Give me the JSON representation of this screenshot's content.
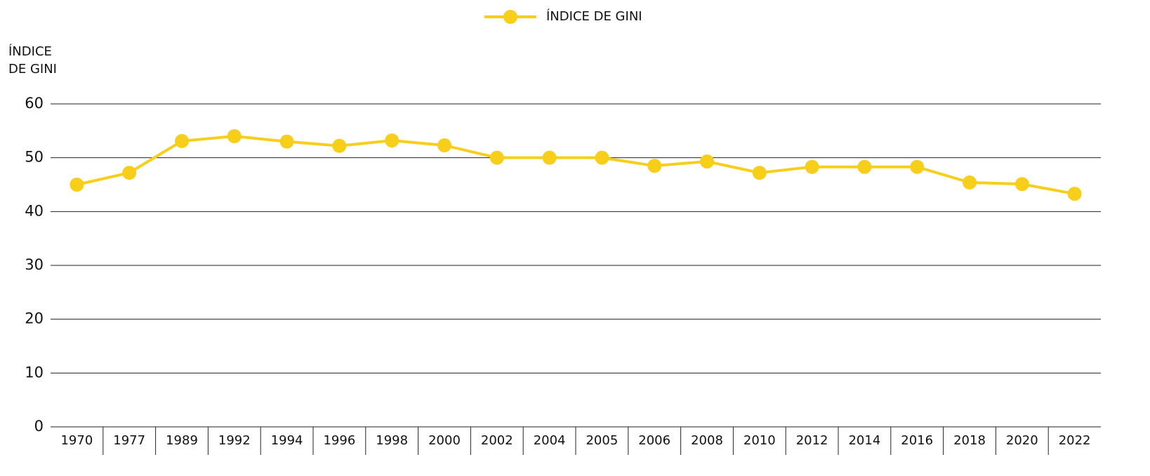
{
  "chart_data": {
    "type": "line",
    "legend": "top",
    "ylabel": [
      "ÍNDICE",
      "DE GINI"
    ],
    "categories": [
      "1970",
      "1977",
      "1989",
      "1992",
      "1994",
      "1996",
      "1998",
      "2000",
      "2002",
      "2004",
      "2005",
      "2006",
      "2008",
      "2010",
      "2012",
      "2014",
      "2016",
      "2018",
      "2020",
      "2022"
    ],
    "series": [
      {
        "name": "ÍNDICE DE GINI",
        "color": "#f7cf1a",
        "values": [
          45.0,
          47.2,
          53.1,
          54.0,
          53.0,
          52.2,
          53.2,
          52.3,
          50.0,
          50.0,
          50.0,
          48.5,
          49.3,
          47.2,
          48.3,
          48.3,
          48.3,
          45.4,
          45.1,
          43.3
        ]
      }
    ],
    "ylim": [
      0,
      60
    ],
    "yticks": [
      0,
      10,
      20,
      30,
      40,
      50,
      60
    ],
    "grid": true
  }
}
